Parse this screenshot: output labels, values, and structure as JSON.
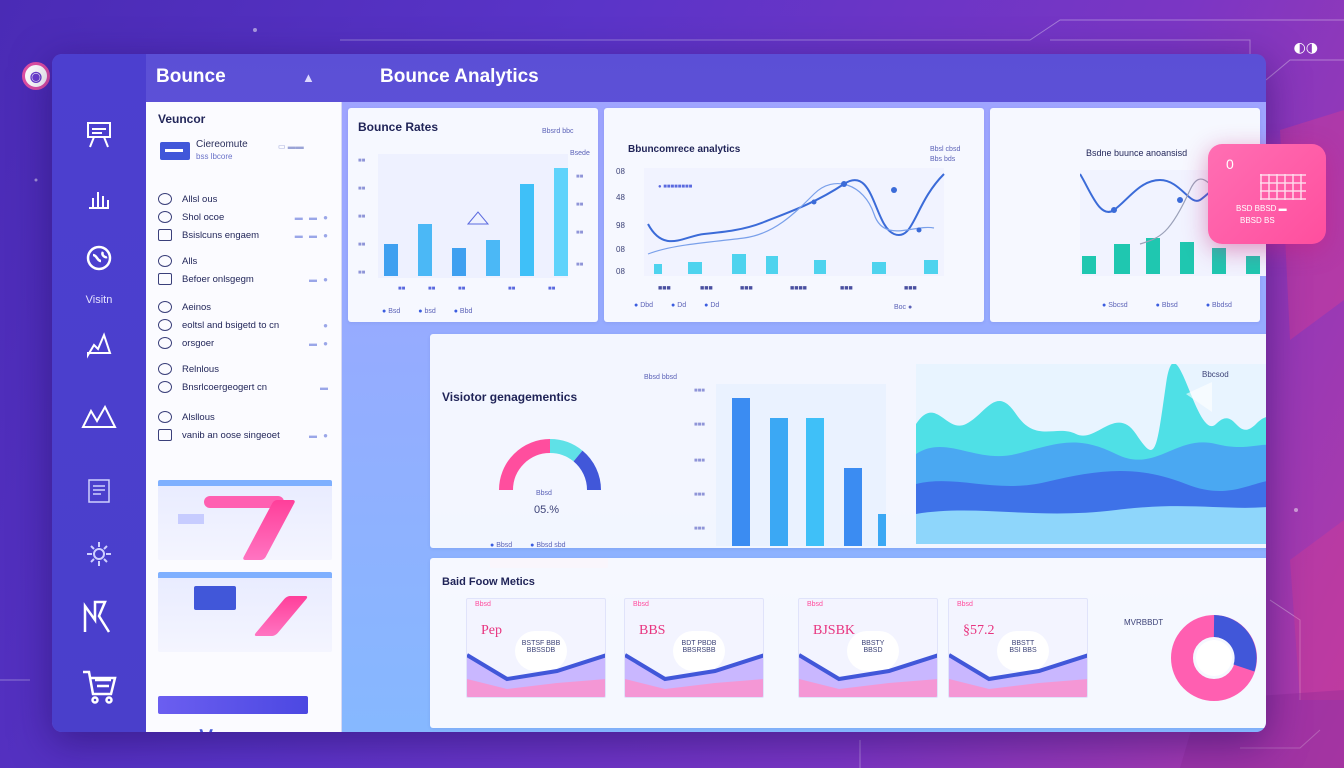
{
  "brand": "Bounce",
  "app_title": "Bounce Analytics",
  "rail": {
    "label": "Visitn",
    "icons": [
      "presentation-icon",
      "bar-chart-icon",
      "globe-icon",
      "hand-pointer-icon",
      "trend-chart-icon",
      "report-icon",
      "gear-icon",
      "funnel-icon",
      "shopping-cart-icon"
    ]
  },
  "panel": {
    "title": "Veuncor",
    "user": {
      "name": "Ciereomute",
      "sub": "bss lbcore",
      "mini": "▭ ▬▬"
    },
    "groups": [
      {
        "rows": [
          {
            "icon": "circle",
            "text": "Allsl ous",
            "dots": ""
          },
          {
            "icon": "circle",
            "text": "Shol ocoe",
            "dots": "▬ ▬ ●"
          },
          {
            "icon": "square",
            "text": "Bsislcuns engaem",
            "dots": "▬ ▬ ●"
          }
        ]
      },
      {
        "rows": [
          {
            "icon": "circle",
            "text": "Alls",
            "dots": ""
          },
          {
            "icon": "square",
            "text": "Befoer onlsgegm",
            "dots": "▬ ●"
          }
        ]
      },
      {
        "rows": [
          {
            "icon": "circle",
            "text": "Aeinos",
            "dots": ""
          },
          {
            "icon": "circle",
            "text": "eoltsl and bsigetd to cn",
            "dots": "●"
          },
          {
            "icon": "circle",
            "text": "orsgoer",
            "dots": "▬ ●"
          }
        ]
      },
      {
        "rows": [
          {
            "icon": "circle",
            "text": "Relnlous",
            "dots": ""
          },
          {
            "icon": "circle",
            "text": "Bnsrlcoergeogert cn",
            "dots": "▬"
          }
        ]
      },
      {
        "rows": [
          {
            "icon": "circle",
            "text": "Alsllous",
            "dots": ""
          },
          {
            "icon": "square",
            "text": "vanib an oose singeoet",
            "dots": "▬ ●"
          }
        ]
      }
    ]
  },
  "cards": {
    "bounce_rates": {
      "title": "Bounce Rates",
      "tag": "Bbsrd bbc",
      "right_tag": "Bsede",
      "legend": [
        "Bsd",
        "bsd",
        "Bbd"
      ]
    },
    "ecommerce": {
      "title": "Bbuncomrece analytics",
      "tag": "Bbsl cbsd",
      "tag2": "Bbs bds",
      "legend": [
        "Dbd",
        "Dd",
        "Dd"
      ],
      "legend_right": "Boc ●"
    },
    "bounce_analysis": {
      "title": "Bsdne buunce anoansisd",
      "legend": [
        "Sbcsd",
        "Bbsd",
        "Bbdsd"
      ]
    },
    "visitor": {
      "title": "Visiotor genagementics",
      "tag": "Bbsd bbsd",
      "gauge_value": "05.%",
      "gauge_label": "Bbsd",
      "legend": [
        "Bbsd",
        "Bbsd sbd"
      ],
      "wave_tag": "Bbcsod"
    },
    "flow": {
      "title": "Baid Foow Metics",
      "tag_right": "MVRBBDT",
      "tiles": [
        {
          "value": "Pep",
          "tag": "Bbsd",
          "caption": "BSTSF BBB\nBBSSDB"
        },
        {
          "value": "BBS",
          "tag": "Bbsd",
          "caption": "BDT PBDB\nBBSRSBB"
        },
        {
          "value": "BJSBK",
          "tag": "Bbsd",
          "caption": "BBSTY\nBBSD"
        },
        {
          "value": "§57.2",
          "tag": "Bbsd",
          "caption": "BBSTT\nBSI BBS"
        }
      ]
    }
  },
  "popup": {
    "count": "0",
    "line1": "BSD BBSD ▬",
    "line2": "BBSD BS"
  },
  "colors": {
    "accent": "#4157d9",
    "pink": "#ff4e9e",
    "teal": "#1fc7b0",
    "cyan": "#3fc8f4"
  }
}
